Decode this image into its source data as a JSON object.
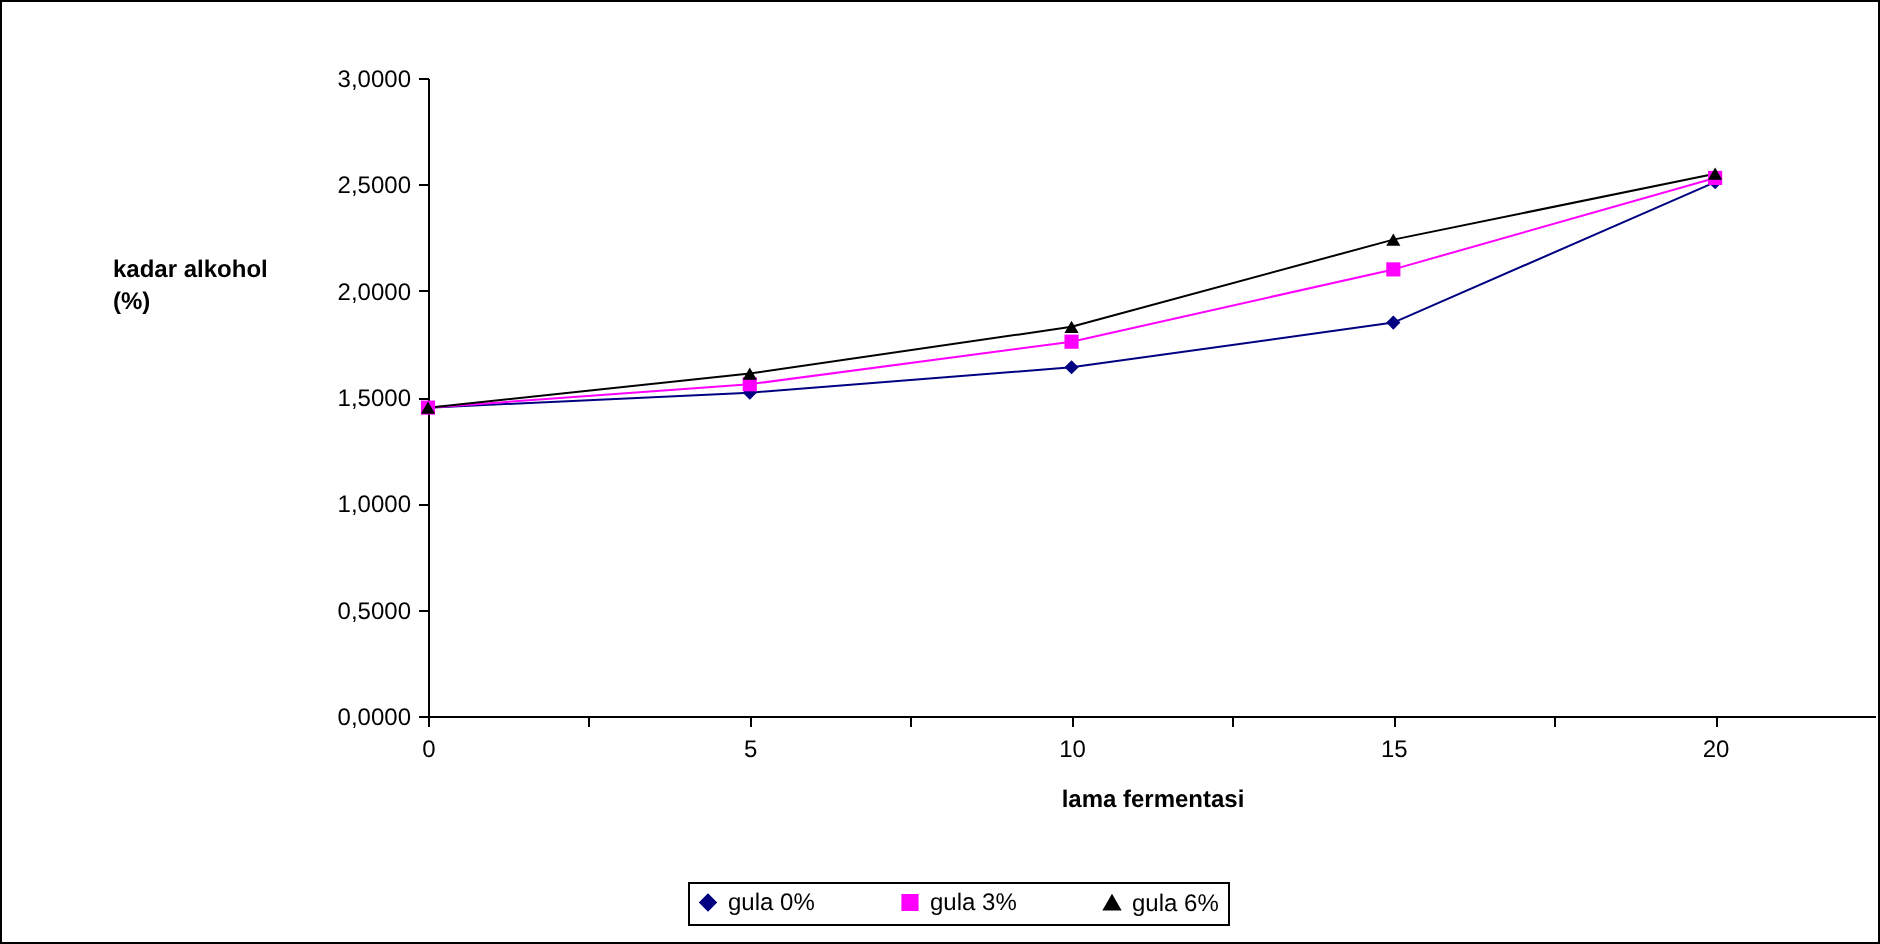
{
  "chart_data": {
    "type": "line",
    "xlabel": "lama fermentasi",
    "ylabel": "kadar alkohol (%)",
    "x": [
      0,
      5,
      10,
      15,
      20
    ],
    "series": [
      {
        "name": "gula 0%",
        "color": "#000080",
        "marker": "diamond",
        "values": [
          1.45,
          1.52,
          1.64,
          1.85,
          2.51
        ]
      },
      {
        "name": "gula 3%",
        "color": "#ff00ff",
        "marker": "square",
        "values": [
          1.45,
          1.56,
          1.76,
          2.1,
          2.53
        ]
      },
      {
        "name": "gula 6%",
        "color": "#000000",
        "marker": "triangle",
        "values": [
          1.45,
          1.61,
          1.83,
          2.24,
          2.55
        ]
      }
    ],
    "xlim": [
      0,
      22.5
    ],
    "xticks": [
      0,
      {
        "value": 2.5,
        "label": null
      },
      5,
      {
        "value": 7.5,
        "label": null
      },
      10,
      {
        "value": 12.5,
        "label": null
      },
      15,
      {
        "value": 17.5,
        "label": null
      },
      20,
      {
        "value": 22.5,
        "label": null
      }
    ],
    "ylim": [
      0,
      3
    ],
    "yticks": [
      {
        "value": 0,
        "label": "0,0000"
      },
      {
        "value": 0.5,
        "label": "0,5000"
      },
      {
        "value": 1,
        "label": "1,0000"
      },
      {
        "value": 1.5,
        "label": "1,5000"
      },
      {
        "value": 2,
        "label": "2,0000"
      },
      {
        "value": 2.5,
        "label": "2,5000"
      },
      {
        "value": 3,
        "label": "3,0000"
      }
    ],
    "grid": false,
    "legend": "bottom"
  }
}
